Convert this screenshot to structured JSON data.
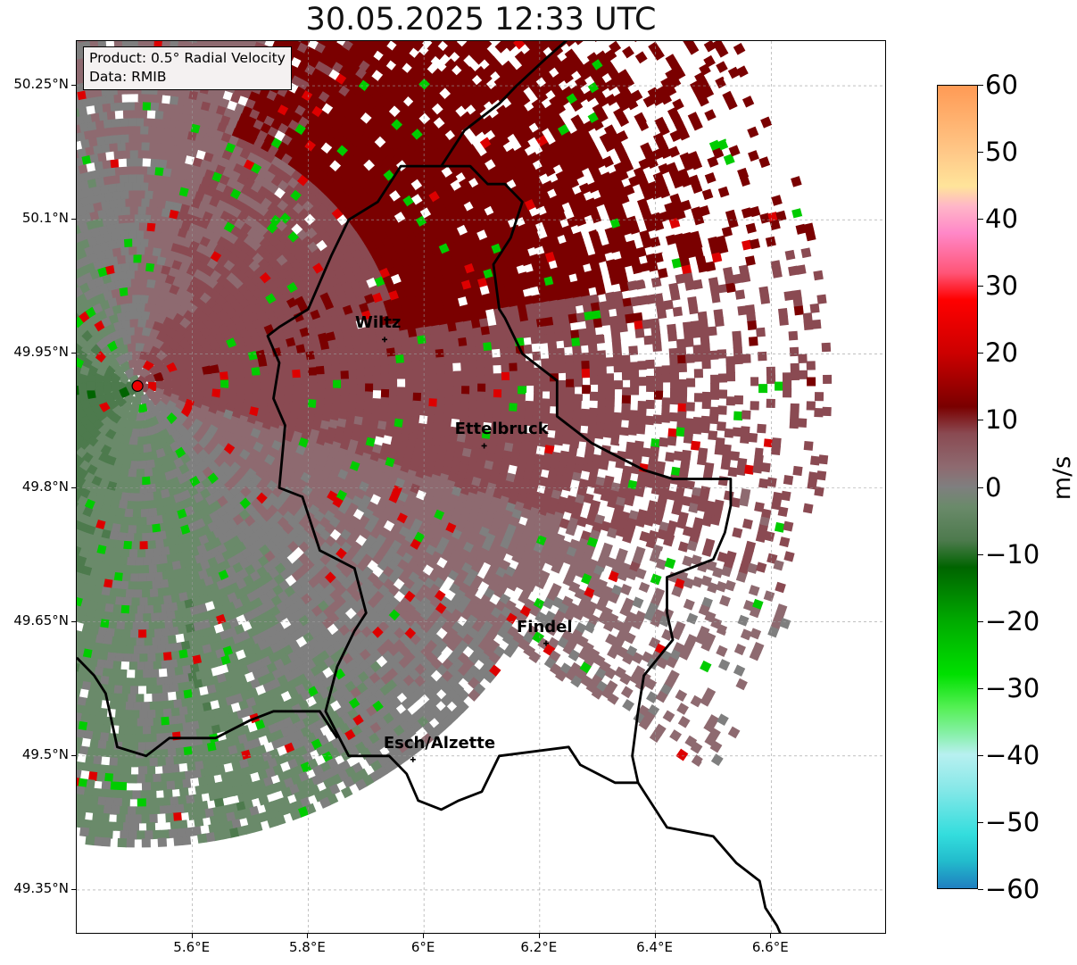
{
  "title": "30.05.2025 12:33 UTC",
  "info": {
    "product": "Product: 0.5° Radial Velocity",
    "data": "Data: RMIB"
  },
  "map_extent": {
    "lon": [
      5.4,
      6.8
    ],
    "lat": [
      49.3,
      50.3
    ]
  },
  "lat_ticks": [
    {
      "lat": 50.25,
      "label": "50.25°N"
    },
    {
      "lat": 50.1,
      "label": "50.1°N"
    },
    {
      "lat": 49.95,
      "label": "49.95°N"
    },
    {
      "lat": 49.8,
      "label": "49.8°N"
    },
    {
      "lat": 49.65,
      "label": "49.65°N"
    },
    {
      "lat": 49.5,
      "label": "49.5°N"
    },
    {
      "lat": 49.35,
      "label": "49.35°N"
    }
  ],
  "lon_ticks": [
    {
      "lon": 5.6,
      "label": "5.6°E"
    },
    {
      "lon": 5.8,
      "label": "5.8°E"
    },
    {
      "lon": 6.0,
      "label": "6°E"
    },
    {
      "lon": 6.2,
      "label": "6.2°E"
    },
    {
      "lon": 6.4,
      "label": "6.4°E"
    },
    {
      "lon": 6.6,
      "label": "6.6°E"
    }
  ],
  "radar_site": {
    "lon": 5.505,
    "lat": 49.914
  },
  "cities": [
    {
      "name": "Wiltz",
      "lon": 5.932,
      "lat": 49.966
    },
    {
      "name": "Ettelbruck",
      "lon": 6.104,
      "lat": 49.847
    },
    {
      "name": "Findel",
      "lon": 6.211,
      "lat": 49.626
    },
    {
      "name": "Esch/Alzette",
      "lon": 5.981,
      "lat": 49.496
    }
  ],
  "colorbar": {
    "label": "m/s",
    "range": [
      -60,
      60
    ],
    "ticks": [
      "60",
      "50",
      "40",
      "30",
      "20",
      "10",
      "0",
      "−10",
      "−20",
      "−30",
      "−40",
      "−50",
      "−60"
    ],
    "tick_values": [
      60,
      50,
      40,
      30,
      20,
      10,
      0,
      -10,
      -20,
      -30,
      -40,
      -50,
      -60
    ],
    "colors": {
      "60": "#ff9a55",
      "50": "#ffc888",
      "45": "#ffe49a",
      "42": "#ffb6c8",
      "38": "#ff88c8",
      "32": "#ff5577",
      "28": "#ff0000",
      "20": "#cc0000",
      "12": "#7a0000",
      "8": "#8a4a52",
      "3": "#8e6a70",
      "0": "#7f7f7f",
      "-3": "#6a8a6a",
      "-8": "#4d7a4d",
      "-12": "#006400",
      "-20": "#00aa00",
      "-28": "#00e000",
      "-33": "#55f055",
      "-37": "#88f0aa",
      "-40": "#b8f0f0",
      "-45": "#88e8e8",
      "-52": "#33dddd",
      "-56": "#22bbcc",
      "-60": "#1f7fc0"
    }
  },
  "border_lines": {
    "luxembourg": [
      [
        6.03,
        50.16
      ],
      [
        6.08,
        50.16
      ],
      [
        6.11,
        50.14
      ],
      [
        6.14,
        50.14
      ],
      [
        6.17,
        50.12
      ],
      [
        6.15,
        50.08
      ],
      [
        6.12,
        50.05
      ],
      [
        6.13,
        50.0
      ],
      [
        6.14,
        49.99
      ],
      [
        6.17,
        49.95
      ],
      [
        6.21,
        49.93
      ],
      [
        6.23,
        49.92
      ],
      [
        6.23,
        49.88
      ],
      [
        6.29,
        49.85
      ],
      [
        6.32,
        49.84
      ],
      [
        6.35,
        49.83
      ],
      [
        6.38,
        49.82
      ],
      [
        6.43,
        49.81
      ],
      [
        6.48,
        49.81
      ],
      [
        6.53,
        49.81
      ],
      [
        6.53,
        49.78
      ],
      [
        6.52,
        49.75
      ],
      [
        6.5,
        49.72
      ],
      [
        6.42,
        49.7
      ],
      [
        6.42,
        49.66
      ],
      [
        6.43,
        49.63
      ],
      [
        6.38,
        49.59
      ],
      [
        6.37,
        49.55
      ],
      [
        6.36,
        49.5
      ],
      [
        6.37,
        49.47
      ],
      [
        6.33,
        49.47
      ],
      [
        6.27,
        49.49
      ],
      [
        6.25,
        49.51
      ],
      [
        6.13,
        49.5
      ],
      [
        6.1,
        49.46
      ],
      [
        6.06,
        49.45
      ],
      [
        6.03,
        49.44
      ],
      [
        5.99,
        49.45
      ],
      [
        5.97,
        49.48
      ],
      [
        5.94,
        49.5
      ],
      [
        5.87,
        49.5
      ],
      [
        5.83,
        49.55
      ],
      [
        5.85,
        49.6
      ],
      [
        5.88,
        49.64
      ],
      [
        5.9,
        49.66
      ],
      [
        5.88,
        49.71
      ],
      [
        5.82,
        49.73
      ],
      [
        5.79,
        49.79
      ],
      [
        5.75,
        49.8
      ],
      [
        5.76,
        49.87
      ],
      [
        5.74,
        49.9
      ],
      [
        5.75,
        49.94
      ],
      [
        5.73,
        49.97
      ],
      [
        5.75,
        49.98
      ],
      [
        5.8,
        50.0
      ],
      [
        5.84,
        50.06
      ],
      [
        5.87,
        50.1
      ],
      [
        5.92,
        50.12
      ],
      [
        5.96,
        50.16
      ],
      [
        6.03,
        50.16
      ]
    ],
    "belgium_france": [
      [
        5.4,
        49.61
      ],
      [
        5.43,
        49.59
      ],
      [
        5.45,
        49.57
      ],
      [
        5.47,
        49.51
      ],
      [
        5.52,
        49.5
      ],
      [
        5.56,
        49.52
      ],
      [
        5.61,
        49.52
      ],
      [
        5.64,
        49.52
      ],
      [
        5.67,
        49.53
      ],
      [
        5.7,
        49.54
      ],
      [
        5.74,
        49.55
      ],
      [
        5.78,
        49.55
      ],
      [
        5.82,
        49.55
      ],
      [
        5.85,
        49.52
      ]
    ],
    "germany_east": [
      [
        6.03,
        50.16
      ],
      [
        6.07,
        50.2
      ],
      [
        6.13,
        50.23
      ],
      [
        6.16,
        50.25
      ],
      [
        6.21,
        50.28
      ],
      [
        6.28,
        50.32
      ]
    ],
    "moselle": [
      [
        6.37,
        49.47
      ],
      [
        6.42,
        49.42
      ],
      [
        6.5,
        49.41
      ],
      [
        6.54,
        49.38
      ],
      [
        6.58,
        49.36
      ],
      [
        6.59,
        49.33
      ],
      [
        6.61,
        49.31
      ],
      [
        6.63,
        49.28
      ]
    ]
  }
}
